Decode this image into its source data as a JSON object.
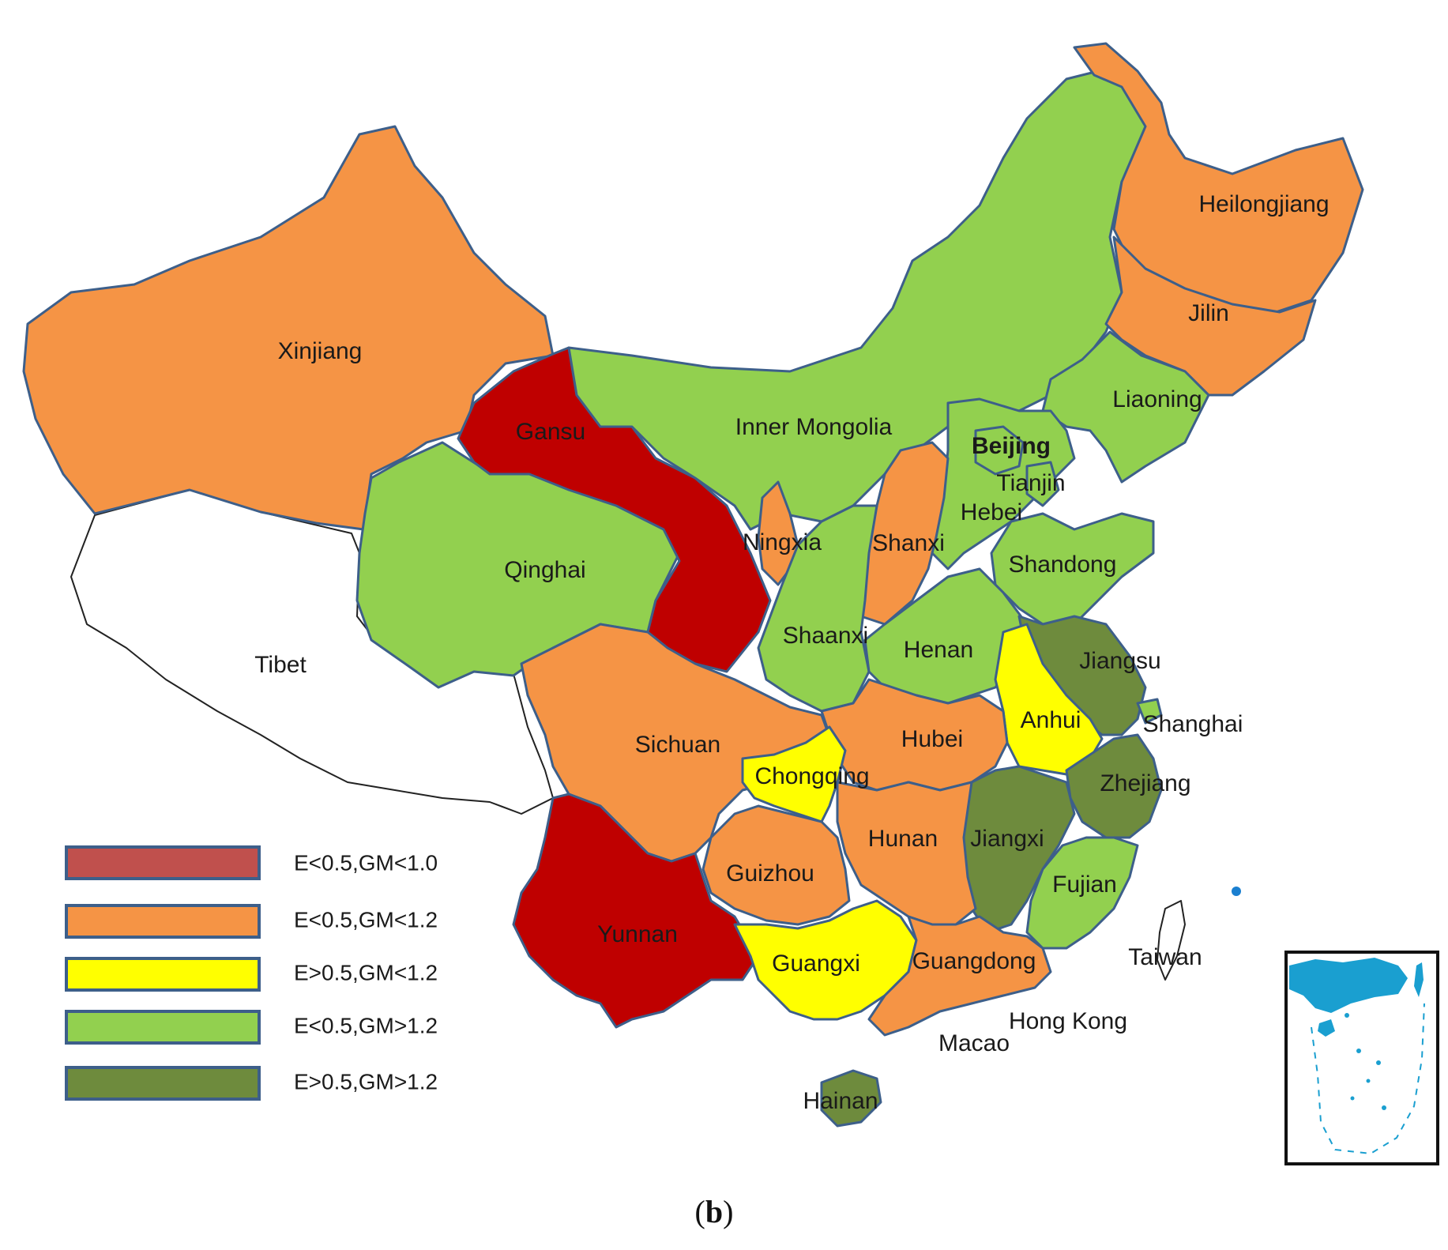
{
  "colors": {
    "red": "#bf0000",
    "orange": "#f59445",
    "yellow": "#ffff00",
    "lightgreen": "#92d04f",
    "darkgreen": "#6e8b3d",
    "none": "#ffffff",
    "legend_red": "#c0504d",
    "inset_blue": "#1a9fd0"
  },
  "provinces": [
    {
      "name": "Xinjiang",
      "category": "orange"
    },
    {
      "name": "Tibet",
      "category": "none"
    },
    {
      "name": "Gansu",
      "category": "red"
    },
    {
      "name": "Qinghai",
      "category": "lightgreen"
    },
    {
      "name": "Inner Mongolia",
      "category": "lightgreen"
    },
    {
      "name": "Heilongjiang",
      "category": "orange"
    },
    {
      "name": "Jilin",
      "category": "orange"
    },
    {
      "name": "Liaoning",
      "category": "lightgreen"
    },
    {
      "name": "Beijing",
      "category": "lightgreen"
    },
    {
      "name": "Tianjin",
      "category": "lightgreen"
    },
    {
      "name": "Hebei",
      "category": "lightgreen"
    },
    {
      "name": "Shanxi",
      "category": "orange"
    },
    {
      "name": "Ningxia",
      "category": "orange"
    },
    {
      "name": "Shaanxi",
      "category": "lightgreen"
    },
    {
      "name": "Shandong",
      "category": "lightgreen"
    },
    {
      "name": "Henan",
      "category": "lightgreen"
    },
    {
      "name": "Jiangsu",
      "category": "darkgreen"
    },
    {
      "name": "Anhui",
      "category": "yellow"
    },
    {
      "name": "Shanghai",
      "category": "lightgreen"
    },
    {
      "name": "Hubei",
      "category": "orange"
    },
    {
      "name": "Sichuan",
      "category": "orange"
    },
    {
      "name": "Chongqing",
      "category": "yellow"
    },
    {
      "name": "Zhejiang",
      "category": "darkgreen"
    },
    {
      "name": "Jiangxi",
      "category": "darkgreen"
    },
    {
      "name": "Hunan",
      "category": "orange"
    },
    {
      "name": "Guizhou",
      "category": "orange"
    },
    {
      "name": "Fujian",
      "category": "lightgreen"
    },
    {
      "name": "Yunnan",
      "category": "red"
    },
    {
      "name": "Guangxi",
      "category": "yellow"
    },
    {
      "name": "Guangdong",
      "category": "orange"
    },
    {
      "name": "Taiwan",
      "category": "none"
    },
    {
      "name": "Hong Kong",
      "category": "none"
    },
    {
      "name": "Macao",
      "category": "none"
    },
    {
      "name": "Hainan",
      "category": "darkgreen"
    }
  ],
  "legend": [
    {
      "label": "E<0.5,GM<1.0",
      "category": "red"
    },
    {
      "label": "E<0.5,GM<1.2",
      "category": "orange"
    },
    {
      "label": "E>0.5,GM<1.2",
      "category": "yellow"
    },
    {
      "label": "E<0.5,GM>1.2",
      "category": "lightgreen"
    },
    {
      "label": "E>0.5,GM>1.2",
      "category": "darkgreen"
    }
  ],
  "caption": {
    "open": "(",
    "letter": "b",
    "close": ")"
  }
}
